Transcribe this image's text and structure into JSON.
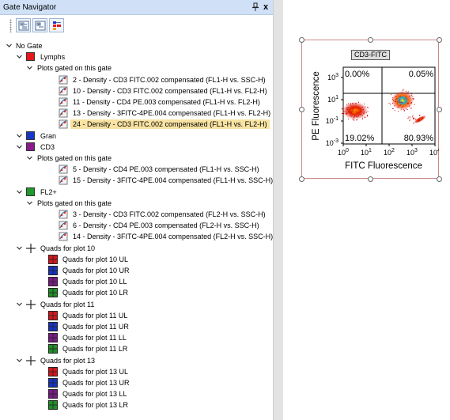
{
  "panel": {
    "title": "Gate Navigator",
    "pin_icon": "pin-icon",
    "close_label": "x"
  },
  "toolbar": {
    "buttons": [
      {
        "icon": "collapse-tree-icon"
      },
      {
        "icon": "expand-tree-icon"
      },
      {
        "icon": "gate-colors-icon"
      }
    ]
  },
  "tree": {
    "root": "No Gate",
    "plots_label": "Plots gated on this gate",
    "lymphs": {
      "label": "Lymphs",
      "color": "#e8161b",
      "plots": [
        "2 - Density - CD3 FITC.002 compensated (FL1-H vs. SSC-H)",
        "10 - Density - CD3 FITC.002 compensated (FL1-H vs. FL2-H)",
        "11 - Density - CD4 PE.003 compensated (FL1-H vs. FL2-H)",
        "13 - Density - 3FITC-4PE.004 compensated (FL1-H vs. FL2-H)",
        "24 - Density - CD3 FITC.002 compensated (FL1-H vs. FL2-H)"
      ],
      "selected_index": 4
    },
    "gran": {
      "label": "Gran",
      "color": "#1536c8"
    },
    "cd3": {
      "label": "CD3",
      "color": "#8b1a8b",
      "plots": [
        "5 - Density - CD4 PE.003 compensated (FL1-H vs. SSC-H)",
        "15 - Density - 3FITC-4PE.004 compensated (FL1-H vs. SSC-H)"
      ]
    },
    "fl2": {
      "label": "FL2+",
      "color": "#1d9a2a",
      "plots": [
        "3 - Density - CD3 FITC.002 compensated (FL2-H vs. SSC-H)",
        "6 - Density - CD4 PE.003 compensated (FL2-H vs. SSC-H)",
        "14 - Density - 3FITC-4PE.004 compensated (FL2-H vs. SSC-H)"
      ]
    },
    "quads": [
      {
        "label": "Quads for plot 10",
        "items": [
          "Quads for plot 10 UL",
          "Quads for plot 10 UR",
          "Quads for plot 10 LL",
          "Quads for plot 10 LR"
        ]
      },
      {
        "label": "Quads for plot 11",
        "items": [
          "Quads for plot 11 UL",
          "Quads for plot 11 UR",
          "Quads for plot 11 LL",
          "Quads for plot 11 LR"
        ]
      },
      {
        "label": "Quads for plot 13",
        "items": [
          "Quads for plot 13 UL",
          "Quads for plot 13 UR",
          "Quads for plot 13 LL",
          "Quads for plot 13 LR"
        ]
      }
    ],
    "quad_colors": [
      "#d8141a",
      "#1433c4",
      "#7a1a86",
      "#1f8f26"
    ]
  },
  "plot": {
    "title": "CD3-FITC",
    "xlabel": "FITC Fluorescence",
    "ylabel": "PE Fluorescence",
    "x_ticks": [
      "10^0",
      "10^1",
      "10^2",
      "10^3",
      "10^4"
    ],
    "y_ticks": [
      "10^3",
      "10^1",
      "10^-1",
      "10^-3"
    ],
    "quadrants": {
      "UL": "0.00%",
      "UR": "0.05%",
      "LL": "19.02%",
      "LR": "80.93%"
    }
  }
}
